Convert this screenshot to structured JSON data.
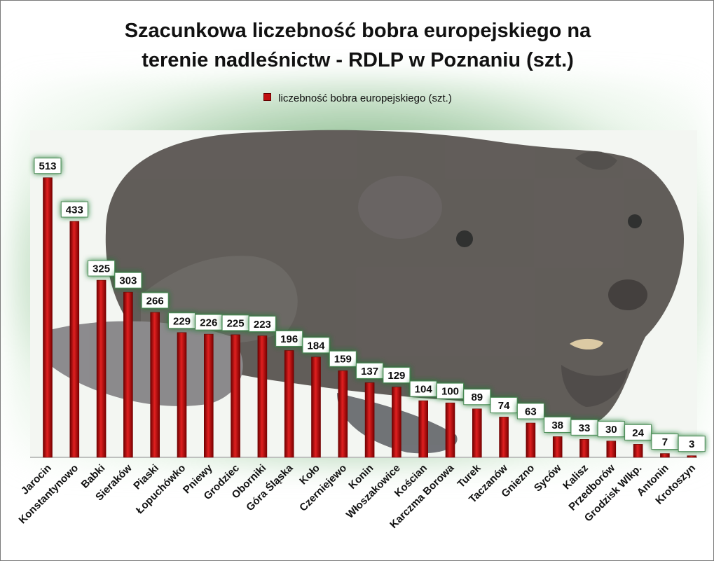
{
  "title_line1": "Szacunkowa liczebność bobra europejskiego na",
  "title_line2": "terenie nadleśnictw - RDLP w Poznaniu (szt.)",
  "legend_label": "liczebność bobra europejskiego (szt.)",
  "colors": {
    "bar": "#c00000",
    "bar_dark": "#6e0000",
    "label_bg": "#ffffff",
    "label_glow": "#1e7a30"
  },
  "chart_data": {
    "type": "bar",
    "title": "Szacunkowa liczebność bobra europejskiego na terenie nadleśnictw - RDLP w Poznaniu (szt.)",
    "xlabel": "",
    "ylabel": "",
    "ylim": [
      0,
      600
    ],
    "grid": false,
    "legend_placement": "top",
    "categories": [
      "Jarocin",
      "Konstantynowo",
      "Babki",
      "Sieraków",
      "Piaski",
      "Łopuchówko",
      "Pniewy",
      "Grodziec",
      "Oborniki",
      "Góra Śląska",
      "Koło",
      "Czerniejewo",
      "Konin",
      "Włoszakowice",
      "Kościan",
      "Karczma Borowa",
      "Turek",
      "Taczanów",
      "Gniezno",
      "Syców",
      "Kalisz",
      "Przedborów",
      "Grodzisk Wlkp.",
      "Antonin",
      "Krotoszyn"
    ],
    "series": [
      {
        "name": "liczebność bobra europejskiego (szt.)",
        "values": [
          513,
          433,
          325,
          303,
          266,
          229,
          226,
          225,
          223,
          196,
          184,
          159,
          137,
          129,
          104,
          100,
          89,
          74,
          63,
          38,
          33,
          30,
          24,
          7,
          3
        ]
      }
    ]
  }
}
